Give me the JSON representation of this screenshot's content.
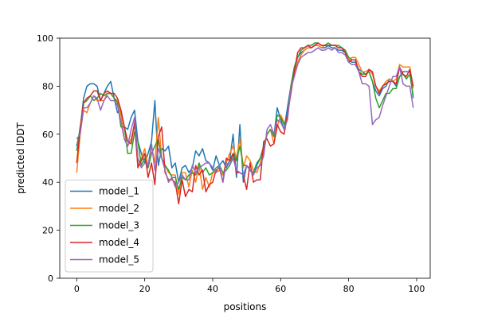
{
  "chart_data": {
    "type": "line",
    "title": "",
    "xlabel": "positions",
    "ylabel": "predicted lDDT",
    "xlim": [
      -5,
      104
    ],
    "ylim": [
      0,
      100
    ],
    "xticks": [
      0,
      20,
      40,
      60,
      80,
      100
    ],
    "yticks": [
      0,
      20,
      40,
      60,
      80,
      100
    ],
    "grid": false,
    "legend_position": "lower-left",
    "x": [
      0,
      1,
      2,
      3,
      4,
      5,
      6,
      7,
      8,
      9,
      10,
      11,
      12,
      13,
      14,
      15,
      16,
      17,
      18,
      19,
      20,
      21,
      22,
      23,
      24,
      25,
      26,
      27,
      28,
      29,
      30,
      31,
      32,
      33,
      34,
      35,
      36,
      37,
      38,
      39,
      40,
      41,
      42,
      43,
      44,
      45,
      46,
      47,
      48,
      49,
      50,
      51,
      52,
      53,
      54,
      55,
      56,
      57,
      58,
      59,
      60,
      61,
      62,
      63,
      64,
      65,
      66,
      67,
      68,
      69,
      70,
      71,
      72,
      73,
      74,
      75,
      76,
      77,
      78,
      79,
      80,
      81,
      82,
      83,
      84,
      85,
      86,
      87,
      88,
      89,
      90,
      91,
      92,
      93,
      94,
      95,
      96,
      97,
      98,
      99
    ],
    "series": [
      {
        "name": "model_1",
        "color": "#1f77b4",
        "values": [
          55,
          62,
          75,
          80,
          81,
          81,
          80,
          74,
          77,
          80,
          82,
          75,
          69,
          70,
          63,
          62,
          67,
          70,
          57,
          52,
          48,
          52,
          57,
          74,
          47,
          54,
          53,
          55,
          46,
          48,
          40,
          46,
          47,
          44,
          46,
          53,
          51,
          54,
          49,
          48,
          45,
          51,
          47,
          49,
          46,
          49,
          60,
          42,
          64,
          40,
          47,
          45,
          44,
          48,
          50,
          55,
          60,
          62,
          59,
          71,
          66,
          62,
          71,
          80,
          87,
          92,
          94,
          95,
          96,
          96,
          97,
          97,
          96,
          96,
          97,
          96,
          96,
          95,
          95,
          94,
          91,
          90,
          90,
          87,
          86,
          85,
          86,
          82,
          78,
          76,
          79,
          80,
          83,
          82,
          80,
          84,
          86,
          86,
          86,
          75
        ]
      },
      {
        "name": "model_2",
        "color": "#ff7f0e",
        "values": [
          44,
          60,
          70,
          69,
          73,
          76,
          74,
          74,
          74,
          77,
          77,
          75,
          74,
          68,
          58,
          55,
          58,
          64,
          47,
          50,
          54,
          46,
          55,
          48,
          67,
          50,
          47,
          44,
          43,
          43,
          35,
          44,
          44,
          38,
          45,
          40,
          47,
          37,
          42,
          38,
          44,
          44,
          45,
          43,
          48,
          52,
          55,
          50,
          58,
          46,
          51,
          49,
          45,
          44,
          48,
          53,
          60,
          62,
          56,
          63,
          68,
          65,
          66,
          80,
          86,
          90,
          93,
          95,
          96,
          96,
          97,
          97,
          96,
          97,
          97,
          97,
          97,
          96,
          96,
          95,
          91,
          92,
          92,
          89,
          86,
          86,
          87,
          85,
          80,
          78,
          80,
          82,
          83,
          82,
          83,
          89,
          88,
          88,
          88,
          79
        ]
      },
      {
        "name": "model_3",
        "color": "#2ca02c",
        "values": [
          53,
          63,
          73,
          74,
          76,
          74,
          75,
          77,
          76,
          77,
          77,
          75,
          73,
          63,
          63,
          52,
          52,
          61,
          57,
          47,
          50,
          46,
          52,
          55,
          58,
          50,
          47,
          45,
          42,
          42,
          37,
          42,
          41,
          43,
          44,
          43,
          48,
          44,
          46,
          43,
          44,
          46,
          47,
          44,
          45,
          47,
          52,
          49,
          55,
          47,
          47,
          45,
          44,
          47,
          50,
          55,
          60,
          62,
          59,
          68,
          67,
          64,
          67,
          80,
          88,
          92,
          95,
          96,
          97,
          97,
          98,
          98,
          97,
          97,
          98,
          97,
          97,
          97,
          96,
          95,
          92,
          91,
          91,
          86,
          85,
          85,
          86,
          82,
          75,
          71,
          74,
          77,
          77,
          79,
          79,
          84,
          85,
          83,
          85,
          76
        ]
      },
      {
        "name": "model_4",
        "color": "#d62728",
        "values": [
          48,
          62,
          73,
          75,
          76,
          78,
          78,
          74,
          77,
          78,
          77,
          77,
          75,
          70,
          63,
          57,
          56,
          65,
          46,
          49,
          52,
          42,
          48,
          39,
          59,
          63,
          44,
          41,
          41,
          40,
          31,
          41,
          34,
          37,
          36,
          47,
          43,
          45,
          36,
          39,
          40,
          45,
          46,
          40,
          50,
          49,
          52,
          44,
          44,
          43,
          37,
          48,
          40,
          41,
          41,
          57,
          58,
          55,
          56,
          64,
          61,
          60,
          68,
          77,
          86,
          94,
          96,
          96,
          97,
          96,
          97,
          98,
          97,
          97,
          97,
          97,
          97,
          96,
          96,
          94,
          90,
          91,
          91,
          86,
          84,
          84,
          87,
          86,
          80,
          77,
          80,
          81,
          82,
          82,
          81,
          88,
          85,
          84,
          87,
          80
        ]
      },
      {
        "name": "model_5",
        "color": "#9467bd",
        "values": [
          58,
          60,
          71,
          71,
          73,
          76,
          75,
          70,
          74,
          76,
          74,
          74,
          72,
          65,
          58,
          55,
          62,
          67,
          50,
          46,
          48,
          47,
          56,
          45,
          54,
          50,
          45,
          40,
          42,
          38,
          40,
          43,
          41,
          41,
          47,
          44,
          46,
          47,
          48,
          48,
          46,
          44,
          47,
          40,
          48,
          47,
          50,
          45,
          44,
          43,
          47,
          45,
          43,
          46,
          47,
          51,
          62,
          64,
          60,
          66,
          65,
          62,
          66,
          79,
          84,
          89,
          92,
          93,
          94,
          94,
          95,
          96,
          95,
          95,
          96,
          95,
          96,
          94,
          94,
          93,
          90,
          89,
          89,
          86,
          81,
          81,
          80,
          64,
          66,
          67,
          72,
          76,
          80,
          84,
          84,
          88,
          81,
          80,
          80,
          71
        ]
      }
    ]
  }
}
